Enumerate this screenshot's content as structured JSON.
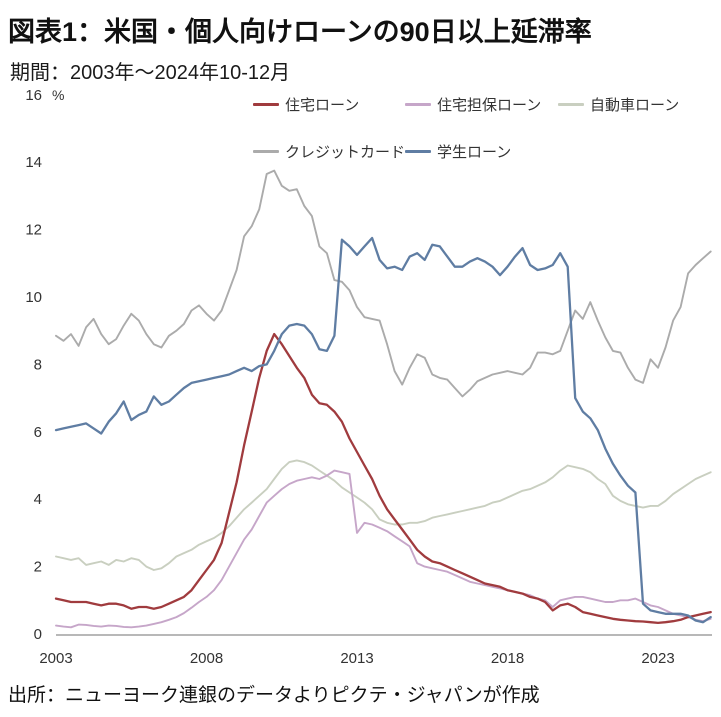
{
  "header": {
    "title": "図表1：米国・個人向けローンの90日以上延滞率",
    "subtitle": "期間：2003年～2024年10-12月"
  },
  "source": {
    "text": "出所：ニューヨーク連銀のデータよりピクテ・ジャパンが作成"
  },
  "chart_data": {
    "type": "line",
    "title": "米国・個人向けローンの90日以上延滞率",
    "x_start": 2003,
    "x_step_years": 0.25,
    "x_end": 2024.75,
    "x_ticks": [
      "2003",
      "2008",
      "2013",
      "2018",
      "2023"
    ],
    "y_axis": {
      "min": 0,
      "max": 16,
      "tick_step": 2,
      "unit": "%"
    },
    "grid": false,
    "legend_position": "top-inside-two-rows",
    "axis_color": "#b8b8b8",
    "tick_text_color": "#333333",
    "series": [
      {
        "name": "住宅ローン",
        "color": "#a03b3e",
        "values": [
          1.05,
          1.0,
          0.95,
          0.95,
          0.95,
          0.9,
          0.85,
          0.9,
          0.9,
          0.85,
          0.75,
          0.8,
          0.8,
          0.75,
          0.8,
          0.9,
          1.0,
          1.1,
          1.3,
          1.6,
          1.9,
          2.2,
          2.7,
          3.6,
          4.5,
          5.6,
          6.6,
          7.6,
          8.4,
          8.9,
          8.6,
          8.25,
          7.9,
          7.6,
          7.1,
          6.85,
          6.8,
          6.6,
          6.3,
          5.8,
          5.4,
          5.0,
          4.6,
          4.1,
          3.7,
          3.4,
          3.1,
          2.8,
          2.5,
          2.3,
          2.15,
          2.1,
          2.0,
          1.9,
          1.8,
          1.7,
          1.6,
          1.5,
          1.45,
          1.4,
          1.3,
          1.25,
          1.2,
          1.1,
          1.05,
          0.95,
          0.7,
          0.85,
          0.9,
          0.8,
          0.65,
          0.6,
          0.55,
          0.5,
          0.45,
          0.42,
          0.4,
          0.38,
          0.37,
          0.35,
          0.33,
          0.35,
          0.38,
          0.42,
          0.5,
          0.55,
          0.6,
          0.65
        ]
      },
      {
        "name": "住宅担保ローン",
        "color": "#c6a6c9",
        "values": [
          0.25,
          0.22,
          0.2,
          0.28,
          0.27,
          0.24,
          0.22,
          0.25,
          0.24,
          0.21,
          0.2,
          0.22,
          0.25,
          0.3,
          0.35,
          0.42,
          0.5,
          0.62,
          0.78,
          0.95,
          1.1,
          1.3,
          1.6,
          2.0,
          2.4,
          2.8,
          3.1,
          3.5,
          3.9,
          4.1,
          4.3,
          4.45,
          4.55,
          4.6,
          4.65,
          4.6,
          4.7,
          4.85,
          4.8,
          4.75,
          3.0,
          3.3,
          3.25,
          3.15,
          3.05,
          2.9,
          2.75,
          2.6,
          2.1,
          2.0,
          1.95,
          1.9,
          1.85,
          1.75,
          1.65,
          1.55,
          1.5,
          1.45,
          1.4,
          1.35,
          1.3,
          1.25,
          1.2,
          1.15,
          1.05,
          1.0,
          0.8,
          1.0,
          1.05,
          1.1,
          1.1,
          1.05,
          1.0,
          0.95,
          0.95,
          1.0,
          1.0,
          1.05,
          0.95,
          0.85,
          0.8,
          0.7,
          0.6,
          0.55,
          0.5,
          0.42,
          0.38,
          0.45
        ]
      },
      {
        "name": "自動車ローン",
        "color": "#c9cfc0",
        "values": [
          2.3,
          2.25,
          2.2,
          2.25,
          2.05,
          2.1,
          2.15,
          2.05,
          2.2,
          2.15,
          2.25,
          2.2,
          2.0,
          1.9,
          1.95,
          2.1,
          2.3,
          2.4,
          2.5,
          2.65,
          2.75,
          2.85,
          3.0,
          3.2,
          3.45,
          3.7,
          3.9,
          4.1,
          4.3,
          4.6,
          4.9,
          5.1,
          5.15,
          5.1,
          5.0,
          4.85,
          4.7,
          4.55,
          4.35,
          4.2,
          4.05,
          3.9,
          3.7,
          3.4,
          3.3,
          3.25,
          3.25,
          3.3,
          3.3,
          3.35,
          3.45,
          3.5,
          3.55,
          3.6,
          3.65,
          3.7,
          3.75,
          3.8,
          3.9,
          3.95,
          4.05,
          4.15,
          4.25,
          4.3,
          4.4,
          4.5,
          4.65,
          4.85,
          5.0,
          4.95,
          4.9,
          4.8,
          4.6,
          4.45,
          4.1,
          3.95,
          3.85,
          3.8,
          3.75,
          3.8,
          3.8,
          3.95,
          4.15,
          4.3,
          4.45,
          4.6,
          4.7,
          4.8
        ]
      },
      {
        "name": "クレジットカード",
        "color": "#ababab",
        "values": [
          8.85,
          8.7,
          8.9,
          8.55,
          9.1,
          9.35,
          8.9,
          8.6,
          8.75,
          9.15,
          9.5,
          9.3,
          8.9,
          8.6,
          8.5,
          8.85,
          9.0,
          9.2,
          9.6,
          9.75,
          9.5,
          9.3,
          9.6,
          10.2,
          10.8,
          11.8,
          12.1,
          12.6,
          13.65,
          13.75,
          13.3,
          13.15,
          13.2,
          12.7,
          12.4,
          11.5,
          11.3,
          10.5,
          10.45,
          10.2,
          9.7,
          9.4,
          9.35,
          9.3,
          8.6,
          7.8,
          7.4,
          7.9,
          8.3,
          8.2,
          7.7,
          7.6,
          7.55,
          7.3,
          7.05,
          7.25,
          7.5,
          7.6,
          7.7,
          7.75,
          7.8,
          7.75,
          7.7,
          7.9,
          8.35,
          8.35,
          8.3,
          8.4,
          9.0,
          9.6,
          9.35,
          9.85,
          9.3,
          8.8,
          8.4,
          8.35,
          7.9,
          7.55,
          7.45,
          8.15,
          7.9,
          8.5,
          9.3,
          9.7,
          10.7,
          10.95,
          11.15,
          11.35
        ]
      },
      {
        "name": "学生ローン",
        "color": "#5f7da3",
        "values": [
          6.05,
          6.1,
          6.15,
          6.2,
          6.25,
          6.1,
          5.95,
          6.3,
          6.55,
          6.9,
          6.35,
          6.5,
          6.6,
          7.05,
          6.8,
          6.9,
          7.1,
          7.3,
          7.45,
          7.5,
          7.55,
          7.6,
          7.65,
          7.7,
          7.8,
          7.9,
          7.8,
          7.95,
          8.0,
          8.4,
          8.9,
          9.15,
          9.2,
          9.15,
          8.9,
          8.45,
          8.4,
          8.85,
          11.7,
          11.5,
          11.25,
          11.5,
          11.75,
          11.1,
          10.85,
          10.9,
          10.8,
          11.2,
          11.3,
          11.1,
          11.55,
          11.5,
          11.2,
          10.9,
          10.9,
          11.05,
          11.15,
          11.05,
          10.9,
          10.65,
          10.9,
          11.2,
          11.45,
          10.95,
          10.8,
          10.85,
          10.95,
          11.3,
          10.9,
          7.0,
          6.6,
          6.4,
          6.05,
          5.5,
          5.05,
          4.7,
          4.4,
          4.2,
          0.9,
          0.7,
          0.65,
          0.6,
          0.6,
          0.6,
          0.55,
          0.4,
          0.35,
          0.5
        ]
      }
    ]
  }
}
